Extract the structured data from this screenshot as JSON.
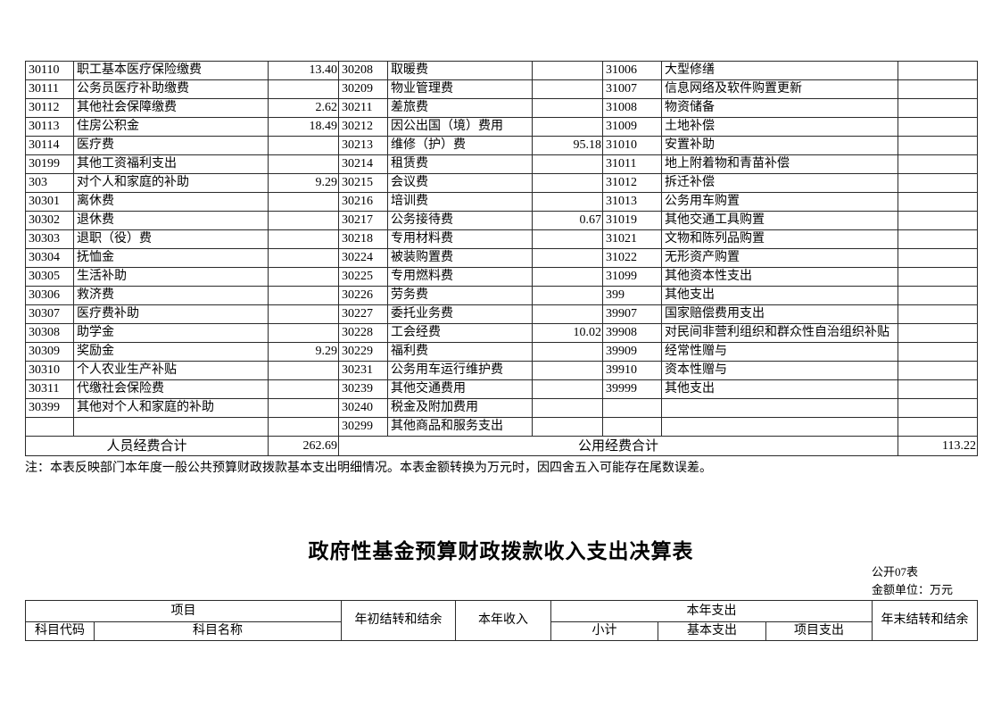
{
  "table1": {
    "rows": [
      [
        "30110",
        "职工基本医疗保险缴费",
        "13.40",
        "30208",
        "取暖费",
        "",
        "31006",
        "大型修缮",
        ""
      ],
      [
        "30111",
        "公务员医疗补助缴费",
        "",
        "30209",
        "物业管理费",
        "",
        "31007",
        "信息网络及软件购置更新",
        ""
      ],
      [
        "30112",
        "其他社会保障缴费",
        "2.62",
        "30211",
        "差旅费",
        "",
        "31008",
        "物资储备",
        ""
      ],
      [
        "30113",
        "住房公积金",
        "18.49",
        "30212",
        "因公出国（境）费用",
        "",
        "31009",
        "土地补偿",
        ""
      ],
      [
        "30114",
        "医疗费",
        "",
        "30213",
        "维修（护）费",
        "95.18",
        "31010",
        "安置补助",
        ""
      ],
      [
        "30199",
        "其他工资福利支出",
        "",
        "30214",
        "租赁费",
        "",
        "31011",
        "地上附着物和青苗补偿",
        ""
      ],
      [
        "303",
        "对个人和家庭的补助",
        "9.29",
        "30215",
        "会议费",
        "",
        "31012",
        "拆迁补偿",
        ""
      ],
      [
        "30301",
        "离休费",
        "",
        "30216",
        "培训费",
        "",
        "31013",
        "公务用车购置",
        ""
      ],
      [
        "30302",
        "退休费",
        "",
        "30217",
        "公务接待费",
        "0.67",
        "31019",
        "其他交通工具购置",
        ""
      ],
      [
        "30303",
        "退职（役）费",
        "",
        "30218",
        "专用材料费",
        "",
        "31021",
        "文物和陈列品购置",
        ""
      ],
      [
        "30304",
        "抚恤金",
        "",
        "30224",
        "被装购置费",
        "",
        "31022",
        "无形资产购置",
        ""
      ],
      [
        "30305",
        "生活补助",
        "",
        "30225",
        "专用燃料费",
        "",
        "31099",
        "其他资本性支出",
        ""
      ],
      [
        "30306",
        "救济费",
        "",
        "30226",
        "劳务费",
        "",
        "399",
        "其他支出",
        ""
      ],
      [
        "30307",
        "医疗费补助",
        "",
        "30227",
        "委托业务费",
        "",
        "39907",
        "国家赔偿费用支出",
        ""
      ],
      [
        "30308",
        "助学金",
        "",
        "30228",
        "工会经费",
        "10.02",
        "39908",
        "对民间非营利组织和群众性自治组织补贴",
        ""
      ],
      [
        "30309",
        "奖励金",
        "9.29",
        "30229",
        "福利费",
        "",
        "39909",
        "经常性赠与",
        ""
      ],
      [
        "30310",
        "个人农业生产补贴",
        "",
        "30231",
        "公务用车运行维护费",
        "",
        "39910",
        "资本性赠与",
        ""
      ],
      [
        "30311",
        "代缴社会保险费",
        "",
        "30239",
        "其他交通费用",
        "",
        "39999",
        "其他支出",
        ""
      ],
      [
        "30399",
        "其他对个人和家庭的补助",
        "",
        "30240",
        "税金及附加费用",
        "",
        "",
        "",
        ""
      ],
      [
        "",
        "",
        "",
        "30299",
        "其他商品和服务支出",
        "",
        "",
        "",
        ""
      ]
    ],
    "footer": {
      "personnel_label": "人员经费合计",
      "personnel_total": "262.69",
      "public_label": "公用经费合计",
      "public_total": "113.22"
    }
  },
  "note": "注：本表反映部门本年度一般公共预算财政拨款基本支出明细情况。本表金额转换为万元时，因四舍五入可能存在尾数误差。",
  "section2": {
    "title": "政府性基金预算财政拨款收入支出决算表",
    "table_code": "公开07表",
    "unit": "金额单位：万元",
    "header": {
      "project": "项目",
      "subject_code": "科目代码",
      "subject_name": "科目名称",
      "begin_balance": "年初结转和结余",
      "current_income": "本年收入",
      "current_expenditure": "本年支出",
      "subtotal": "小计",
      "basic_expenditure": "基本支出",
      "project_expenditure": "项目支出",
      "end_balance": "年末结转和结余"
    }
  }
}
